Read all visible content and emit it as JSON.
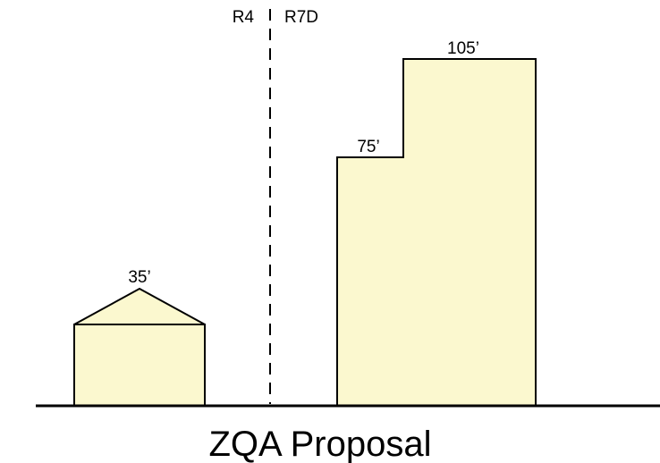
{
  "zones": {
    "left": "R4",
    "right": "R7D"
  },
  "buildings": {
    "house": {
      "height_label": "35’"
    },
    "tower_low": {
      "height_label": "75’"
    },
    "tower_high": {
      "height_label": "105’"
    }
  },
  "caption": "ZQA Proposal",
  "colors": {
    "building_fill": "#fbf8cf",
    "stroke": "#000000",
    "background": "#ffffff"
  }
}
